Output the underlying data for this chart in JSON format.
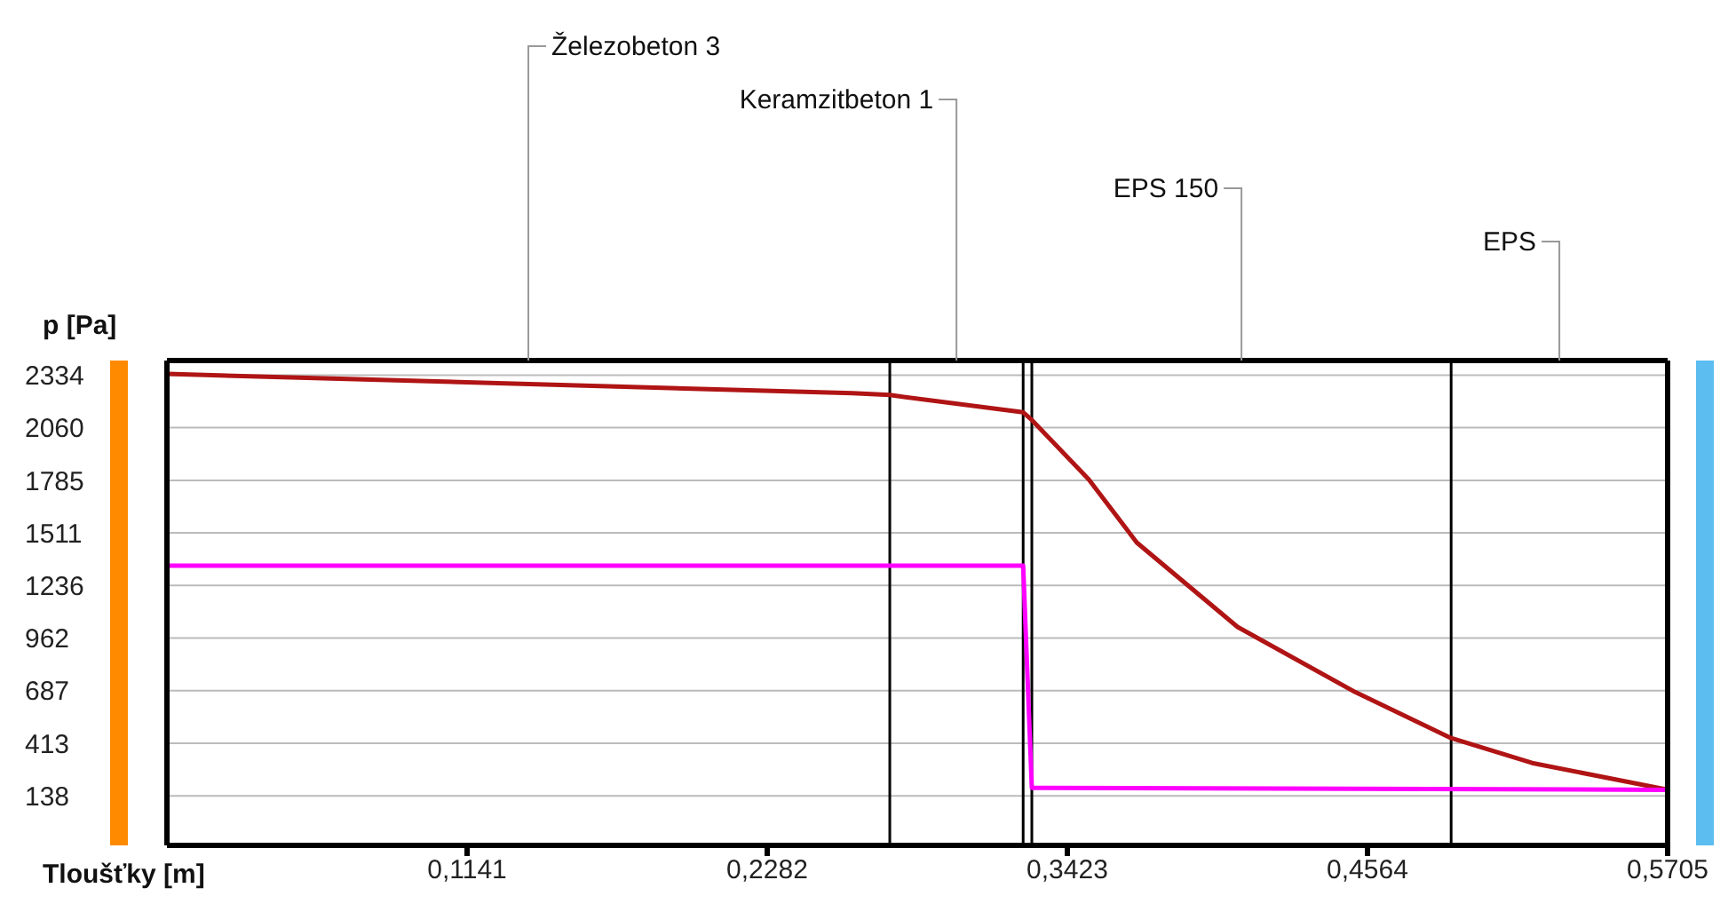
{
  "chart_data": {
    "type": "line",
    "xlabel": "Tloušťky [m]",
    "ylabel": "p [Pa]",
    "xlim": [
      0,
      0.5705
    ],
    "xticks": [
      {
        "value": 0.1141,
        "label": "0,1141"
      },
      {
        "value": 0.2282,
        "label": "0,2282"
      },
      {
        "value": 0.3423,
        "label": "0,3423"
      },
      {
        "value": 0.4564,
        "label": "0,4564"
      },
      {
        "value": 0.5705,
        "label": "0,5705"
      }
    ],
    "ylim": [
      -120,
      2410
    ],
    "yticks": [
      138,
      413,
      687,
      962,
      1236,
      1511,
      1785,
      2060,
      2334
    ],
    "grid": "y",
    "series": [
      {
        "color": "#b01414",
        "x": [
          0,
          0.2606,
          0.2748,
          0.3255,
          0.3288,
          0.3504,
          0.3687,
          0.407,
          0.4517,
          0.4882,
          0.519,
          0.5705
        ],
        "values": [
          2340,
          2240,
          2230,
          2140,
          2100,
          1790,
          1460,
          1020,
          680,
          440,
          310,
          170
        ]
      },
      {
        "color": "#ff00ff",
        "x": [
          0,
          0.3255,
          0.3288,
          0.333,
          0.5705
        ],
        "values": [
          1340,
          1340,
          180,
          180,
          170
        ]
      }
    ],
    "ref_lines": [
      {
        "axis": "x",
        "value": 0.2748,
        "color": "#000000"
      },
      {
        "axis": "x",
        "value": 0.3255,
        "color": "#000000"
      },
      {
        "axis": "x",
        "value": 0.3288,
        "color": "#000000"
      },
      {
        "axis": "x",
        "value": 0.4882,
        "color": "#000000"
      }
    ],
    "annotations": [
      "Železobeton 3",
      "Keramzitbeton 1",
      "EPS 150",
      "EPS"
    ]
  }
}
